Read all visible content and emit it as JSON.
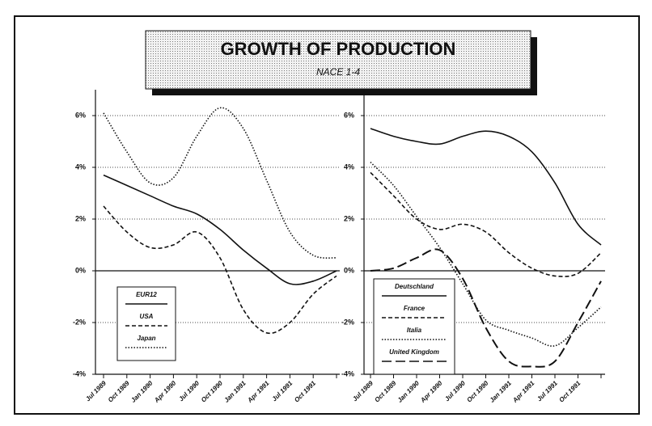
{
  "header": {
    "title": "GROWTH OF PRODUCTION",
    "subtitle": "NACE 1-4"
  },
  "chart_data": [
    {
      "type": "line",
      "categories": [
        "Jul 1989",
        "Oct 1989",
        "Jan 1990",
        "Apr 1990",
        "Jul 1990",
        "Oct 1990",
        "Jan 1991",
        "Apr 1991",
        "Jul 1991",
        "Oct 1991",
        null
      ],
      "series": [
        {
          "name": "EUR12",
          "color": "#111111",
          "dash": "solid",
          "values": [
            3.7,
            3.3,
            2.9,
            2.5,
            2.2,
            1.6,
            0.8,
            0.1,
            -0.5,
            -0.4,
            0
          ]
        },
        {
          "name": "USA",
          "color": "#111111",
          "dash": "dashed",
          "values": [
            2.5,
            1.5,
            0.9,
            1.0,
            1.5,
            0.5,
            -1.5,
            -2.4,
            -2.0,
            -0.9,
            -0.2
          ]
        },
        {
          "name": "Japan",
          "color": "#111111",
          "dash": "dotted",
          "values": [
            6.1,
            4.6,
            3.4,
            3.6,
            5.2,
            6.3,
            5.5,
            3.5,
            1.5,
            0.6,
            0.5
          ]
        }
      ],
      "ylim": [
        -4,
        7
      ],
      "yticks": [
        {
          "value": -4,
          "label": "-4%"
        },
        {
          "value": -2,
          "label": "-2%"
        },
        {
          "value": 0,
          "label": "0%"
        },
        {
          "value": 2,
          "label": "2%"
        },
        {
          "value": 4,
          "label": "4%"
        },
        {
          "value": 6,
          "label": "6%"
        }
      ],
      "grid": true,
      "legend": "lower left"
    },
    {
      "type": "line",
      "categories": [
        "Jul 1989",
        "Oct 1989",
        "Jan 1990",
        "Apr 1990",
        "Jul 1990",
        "Oct 1990",
        "Jan 1991",
        "Apr 1991",
        "Jul 1991",
        "Oct 1991",
        null
      ],
      "series": [
        {
          "name": "Deutschland",
          "color": "#111111",
          "dash": "solid",
          "values": [
            5.5,
            5.2,
            5.0,
            4.9,
            5.2,
            5.4,
            5.2,
            4.6,
            3.4,
            1.8,
            1.0
          ]
        },
        {
          "name": "France",
          "color": "#111111",
          "dash": "dashed",
          "values": [
            3.8,
            2.9,
            2.0,
            1.6,
            1.8,
            1.5,
            0.7,
            0.1,
            -0.2,
            -0.1,
            0.7
          ]
        },
        {
          "name": "Italia",
          "color": "#111111",
          "dash": "dotted",
          "values": [
            4.2,
            3.3,
            2.1,
            0.9,
            -0.5,
            -1.9,
            -2.3,
            -2.6,
            -2.9,
            -2.2,
            -1.4
          ]
        },
        {
          "name": "United Kingdom",
          "color": "#111111",
          "dash": "longdash",
          "values": [
            0,
            0.1,
            0.5,
            0.8,
            -0.3,
            -2.2,
            -3.5,
            -3.7,
            -3.5,
            -2.0,
            -0.4
          ]
        }
      ],
      "ylim": [
        -4,
        7
      ],
      "yticks": [
        {
          "value": -4,
          "label": "-4%"
        },
        {
          "value": -2,
          "label": "-2%"
        },
        {
          "value": 0,
          "label": "0%"
        },
        {
          "value": 2,
          "label": "2%"
        },
        {
          "value": 4,
          "label": "4%"
        },
        {
          "value": 6,
          "label": "6%"
        }
      ],
      "grid": true,
      "legend": "lower left"
    }
  ]
}
